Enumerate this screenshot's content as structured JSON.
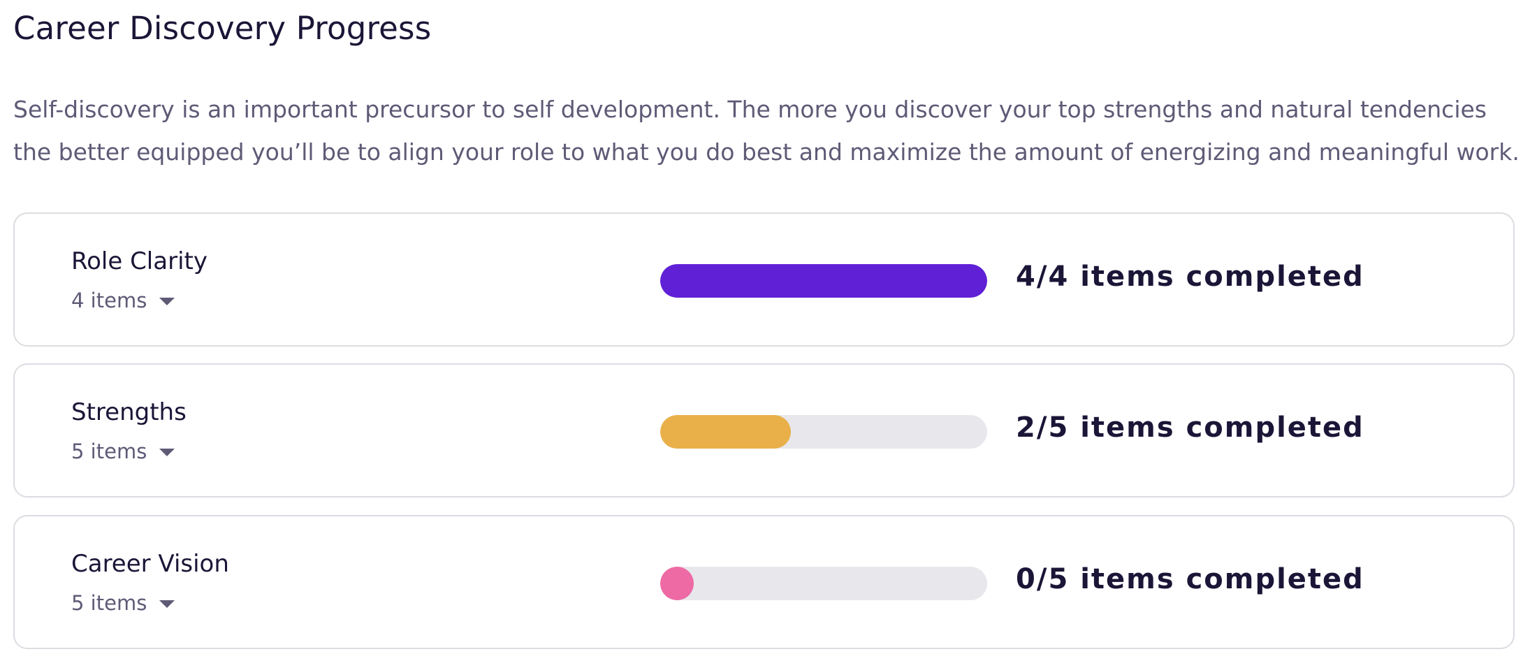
{
  "header": {
    "title": "Career Discovery Progress",
    "description": "Self-discovery is an important precursor to self development. The more you discover your top strengths and natural tendencies the better equipped you’ll be to align your role to what you do best and maximize the amount of energizing and meaningful work."
  },
  "categories": [
    {
      "title": "Role Clarity",
      "count_label": "4 items",
      "completed": 4,
      "total": 4,
      "progress_label": "4/4 items completed",
      "color": "#6020d6",
      "icon": "chevron-down-icon"
    },
    {
      "title": "Strengths",
      "count_label": "5 items",
      "completed": 2,
      "total": 5,
      "progress_label": "2/5 items completed",
      "color": "#e9b04a",
      "icon": "chevron-down-icon"
    },
    {
      "title": "Career Vision",
      "count_label": "5 items",
      "completed": 0,
      "total": 5,
      "progress_label": "0/5 items completed",
      "color": "#ed6aa4",
      "icon": "chevron-down-icon"
    }
  ]
}
